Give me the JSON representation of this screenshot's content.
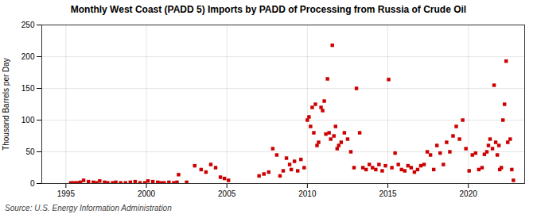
{
  "chart_data": {
    "type": "scatter",
    "title": "Monthly West Coast (PADD 5) Imports by PADD of Processing from Russia of Crude Oil",
    "ylabel": "Thousand Barrels per Day",
    "caption": "Source: U.S. Energy Information Administration",
    "color": "#cc0000",
    "marker": "square",
    "grid": true,
    "xlim": [
      1993.5,
      2023.5
    ],
    "ylim": [
      0,
      250
    ],
    "xticks": [
      1995,
      2000,
      2005,
      2010,
      2015,
      2020
    ],
    "yticks": [
      0,
      50,
      100,
      150,
      200,
      250
    ],
    "x": [
      1995.3,
      1995.5,
      1995.7,
      1995.9,
      1996.1,
      1996.4,
      1996.7,
      1996.9,
      1997.1,
      1997.4,
      1997.6,
      1997.9,
      1998.1,
      1998.4,
      1998.7,
      1999.0,
      1999.3,
      1999.6,
      1999.9,
      2000.1,
      2000.4,
      2000.7,
      2000.9,
      2001.1,
      2001.4,
      2001.7,
      2001.9,
      2002.0,
      2002.5,
      2003.0,
      2003.4,
      2003.7,
      2004.0,
      2004.3,
      2004.6,
      2004.85,
      2005.1,
      2007.0,
      2007.3,
      2007.6,
      2007.85,
      2008.1,
      2008.3,
      2008.5,
      2008.7,
      2008.9,
      2009.0,
      2009.2,
      2009.4,
      2009.6,
      2009.8,
      2010.0,
      2010.1,
      2010.2,
      2010.3,
      2010.4,
      2010.5,
      2010.6,
      2010.7,
      2010.85,
      2010.95,
      2011.05,
      2011.15,
      2011.25,
      2011.35,
      2011.45,
      2011.55,
      2011.65,
      2011.75,
      2011.85,
      2011.95,
      2012.1,
      2012.3,
      2012.5,
      2012.7,
      2012.9,
      2013.05,
      2013.25,
      2013.45,
      2013.65,
      2013.85,
      2014.05,
      2014.25,
      2014.45,
      2014.65,
      2014.85,
      2015.05,
      2015.25,
      2015.45,
      2015.65,
      2015.85,
      2016.05,
      2016.25,
      2016.45,
      2016.65,
      2016.85,
      2017.05,
      2017.25,
      2017.45,
      2017.65,
      2017.85,
      2018.05,
      2018.25,
      2018.45,
      2018.65,
      2018.85,
      2019.05,
      2019.25,
      2019.45,
      2019.65,
      2019.85,
      2020.05,
      2020.25,
      2020.45,
      2020.65,
      2020.85,
      2021.0,
      2021.15,
      2021.25,
      2021.35,
      2021.5,
      2021.6,
      2021.7,
      2021.8,
      2021.9,
      2021.95,
      2022.05,
      2022.15,
      2022.25,
      2022.35,
      2022.45,
      2022.6,
      2022.7,
      2022.8
    ],
    "values": [
      1,
      1,
      1,
      2,
      5,
      3,
      2,
      1,
      4,
      2,
      1,
      1,
      2,
      1,
      1,
      2,
      3,
      1,
      1,
      4,
      3,
      2,
      1,
      1,
      2,
      1,
      2,
      14,
      2,
      28,
      22,
      18,
      30,
      25,
      10,
      8,
      5,
      12,
      15,
      18,
      55,
      45,
      12,
      20,
      40,
      30,
      22,
      35,
      20,
      38,
      25,
      100,
      105,
      90,
      120,
      80,
      125,
      60,
      65,
      120,
      115,
      130,
      78,
      165,
      80,
      70,
      218,
      75,
      90,
      55,
      60,
      65,
      80,
      70,
      50,
      25,
      150,
      80,
      25,
      22,
      30,
      25,
      22,
      30,
      20,
      28,
      164,
      25,
      48,
      30,
      22,
      20,
      28,
      25,
      18,
      22,
      28,
      30,
      50,
      45,
      22,
      60,
      48,
      30,
      65,
      50,
      75,
      90,
      70,
      100,
      55,
      20,
      45,
      48,
      22,
      25,
      46,
      50,
      60,
      70,
      55,
      155,
      65,
      45,
      60,
      22,
      25,
      100,
      125,
      193,
      65,
      70,
      22,
      5
    ]
  }
}
